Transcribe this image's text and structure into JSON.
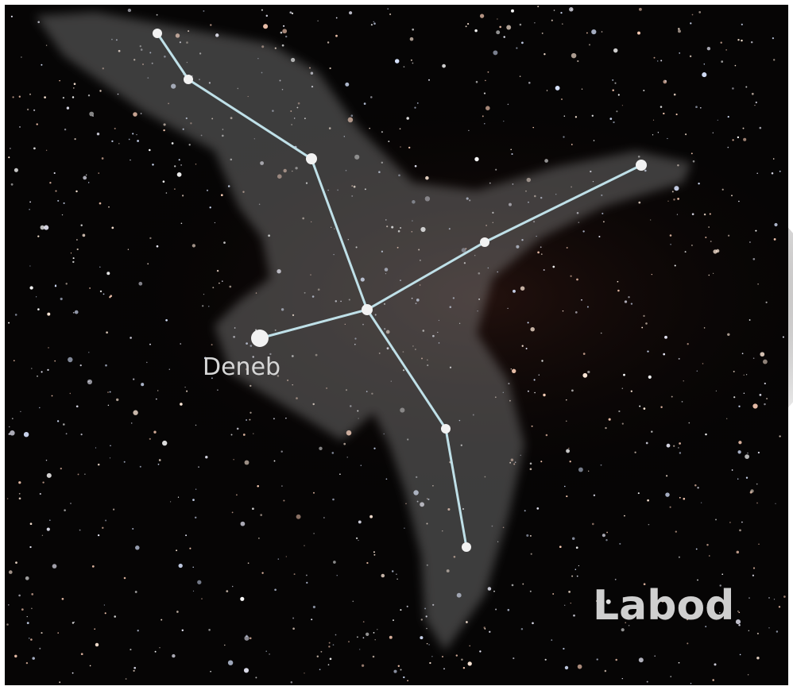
{
  "labels": {
    "star": "Deneb",
    "constellation": "Labod"
  }
}
